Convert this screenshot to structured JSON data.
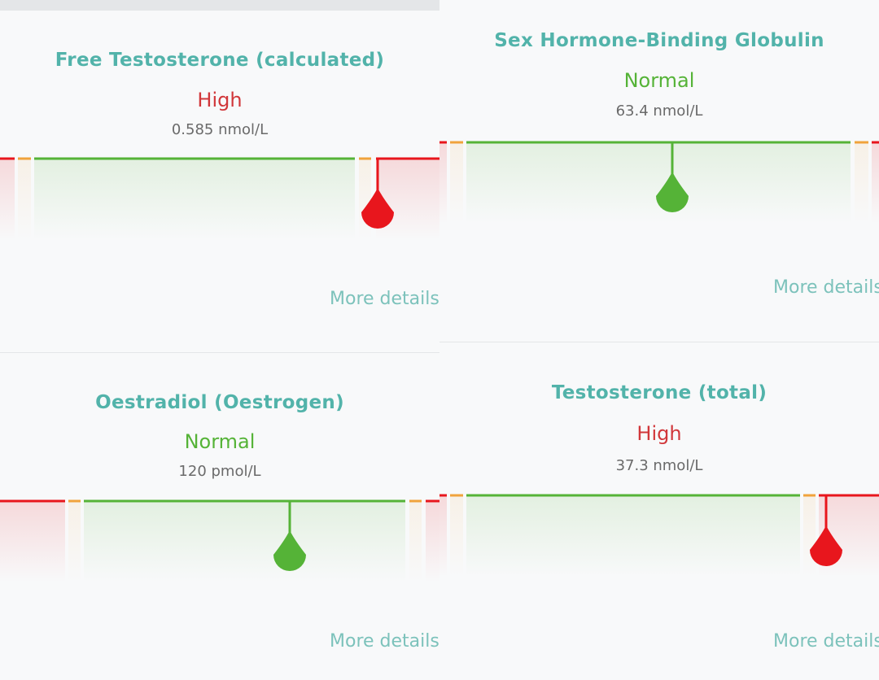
{
  "colors": {
    "title": "#52b3aa",
    "high": "#e8161d",
    "high_text": "#d1373a",
    "normal": "#55b337",
    "borderline": "#f0a33c",
    "link": "#7cc2bb"
  },
  "cards": [
    {
      "title": "Free Testosterone (calculated)",
      "status": "High",
      "status_level": "high",
      "value": "0.585 nmol/L",
      "marker_fraction": 0.86,
      "more_label": "More details"
    },
    {
      "title": "Sex Hormone-Binding Globulin",
      "status": "Normal",
      "status_level": "normal",
      "value": "63.4 nmol/L",
      "marker_fraction": 0.53,
      "more_label": "More details"
    },
    {
      "title": "Oestradiol (Oestrogen)",
      "status": "Normal",
      "status_level": "normal",
      "value": "120 pmol/L",
      "marker_fraction": 0.66,
      "more_label": "More details"
    },
    {
      "title": "Testosterone (total)",
      "status": "High",
      "status_level": "high",
      "value": "37.3 nmol/L",
      "marker_fraction": 0.88,
      "more_label": "More details"
    }
  ]
}
